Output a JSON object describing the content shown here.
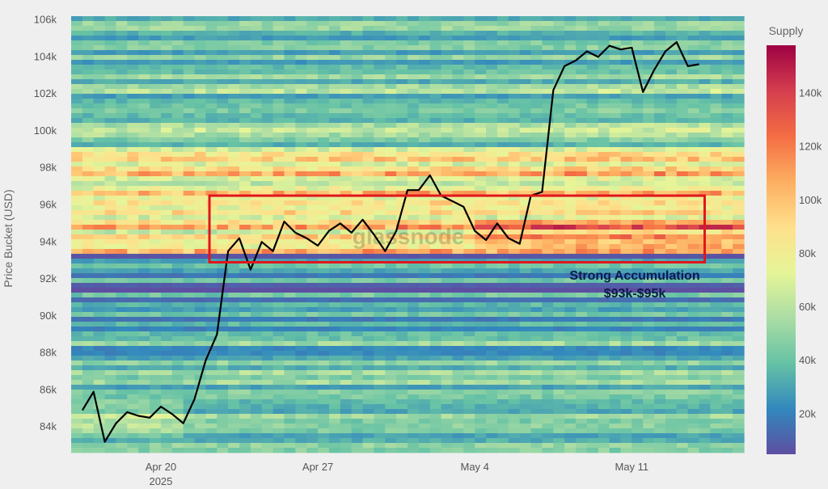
{
  "chart_data": {
    "type": "heatmap",
    "ylabel": "Price Bucket (USD)",
    "colorbar_label": "Supply",
    "colorbar_ticks": [
      {
        "value": 20000,
        "label": "20k"
      },
      {
        "value": 40000,
        "label": "40k"
      },
      {
        "value": 60000,
        "label": "60k"
      },
      {
        "value": 80000,
        "label": "80k"
      },
      {
        "value": 100000,
        "label": "100k"
      },
      {
        "value": 120000,
        "label": "120k"
      },
      {
        "value": 140000,
        "label": "140k"
      }
    ],
    "colorbar_range": [
      5000,
      158000
    ],
    "colorscale": [
      "#5e4fa2",
      "#3288bd",
      "#66c2a5",
      "#abdda4",
      "#e6f598",
      "#fee08b",
      "#fdae61",
      "#f46d43",
      "#d53e4f",
      "#9e0142"
    ],
    "ylim": [
      82700,
      106200
    ],
    "xlim": [
      "2025-04-16T00:00",
      "2025-05-16T00:00"
    ],
    "y_ticks": [
      {
        "value": 84000,
        "label": "84k"
      },
      {
        "value": 86000,
        "label": "86k"
      },
      {
        "value": 88000,
        "label": "88k"
      },
      {
        "value": 90000,
        "label": "90k"
      },
      {
        "value": 92000,
        "label": "92k"
      },
      {
        "value": 94000,
        "label": "94k"
      },
      {
        "value": 96000,
        "label": "96k"
      },
      {
        "value": 98000,
        "label": "98k"
      },
      {
        "value": 100000,
        "label": "100k"
      },
      {
        "value": 102000,
        "label": "102k"
      },
      {
        "value": 104000,
        "label": "104k"
      },
      {
        "value": 106000,
        "label": "106k"
      }
    ],
    "x_ticks": [
      {
        "value": "2025-04-20",
        "label": "Apr 20",
        "sublabel": "2025"
      },
      {
        "value": "2025-04-27",
        "label": "Apr 27"
      },
      {
        "value": "2025-05-04",
        "label": "May 4"
      },
      {
        "value": "2025-05-11",
        "label": "May 11"
      }
    ],
    "price_line": {
      "color": "#000000",
      "x": [
        "2025-04-16T12:00",
        "2025-04-17T00:00",
        "2025-04-17T12:00",
        "2025-04-18T00:00",
        "2025-04-18T12:00",
        "2025-04-19T00:00",
        "2025-04-19T12:00",
        "2025-04-20T00:00",
        "2025-04-20T12:00",
        "2025-04-21T00:00",
        "2025-04-21T12:00",
        "2025-04-22T00:00",
        "2025-04-22T12:00",
        "2025-04-23T00:00",
        "2025-04-23T12:00",
        "2025-04-24T00:00",
        "2025-04-24T12:00",
        "2025-04-25T00:00",
        "2025-04-25T12:00",
        "2025-04-26T00:00",
        "2025-04-26T12:00",
        "2025-04-27T00:00",
        "2025-04-27T12:00",
        "2025-04-28T00:00",
        "2025-04-28T12:00",
        "2025-04-29T00:00",
        "2025-04-29T12:00",
        "2025-04-30T00:00",
        "2025-04-30T12:00",
        "2025-05-01T00:00",
        "2025-05-01T12:00",
        "2025-05-02T00:00",
        "2025-05-02T12:00",
        "2025-05-03T00:00",
        "2025-05-03T12:00",
        "2025-05-04T00:00",
        "2025-05-04T12:00",
        "2025-05-05T00:00",
        "2025-05-05T12:00",
        "2025-05-06T00:00",
        "2025-05-06T12:00",
        "2025-05-07T00:00",
        "2025-05-07T12:00",
        "2025-05-08T00:00",
        "2025-05-08T12:00",
        "2025-05-09T00:00",
        "2025-05-09T12:00",
        "2025-05-10T00:00",
        "2025-05-10T12:00",
        "2025-05-11T00:00",
        "2025-05-11T12:00",
        "2025-05-12T00:00",
        "2025-05-12T12:00",
        "2025-05-13T00:00",
        "2025-05-13T12:00",
        "2025-05-14T00:00",
        "2025-05-14T12:00",
        "2025-05-15T00:00",
        "2025-05-15T12:00"
      ],
      "y": [
        84900,
        85900,
        83200,
        84200,
        84800,
        84600,
        84500,
        85100,
        84700,
        84200,
        85500,
        87600,
        89000,
        93500,
        94200,
        92500,
        94000,
        93500,
        95100,
        94500,
        94200,
        93800,
        94600,
        95000,
        94500,
        95200,
        94400,
        93500,
        94600,
        96800,
        96800,
        97600,
        96500,
        96200,
        95900,
        94600,
        94100,
        95000,
        94200,
        93900,
        96500,
        96700,
        102200,
        103500,
        103800,
        104300,
        104000,
        104600,
        104400,
        104500,
        102100,
        103300,
        104300,
        104800,
        103500,
        103600,
        null,
        null,
        null
      ]
    },
    "highlight_box": {
      "x": [
        "2025-04-22T04:00",
        "2025-05-14T06:00"
      ],
      "y": [
        92900,
        96500
      ],
      "color": "#e0161c"
    },
    "annotation": [
      "Strong Accumulation",
      "$93k-$95k"
    ],
    "watermark": "glassnode"
  }
}
